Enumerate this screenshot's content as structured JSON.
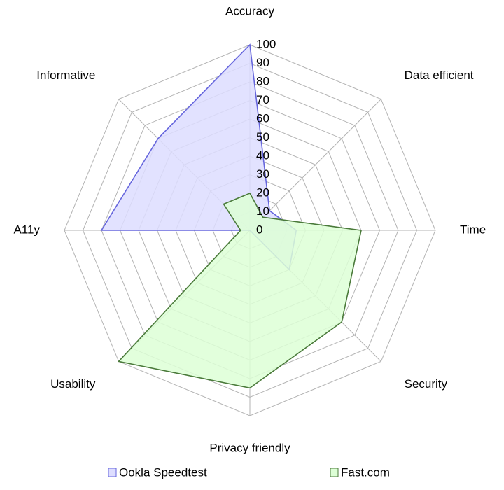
{
  "chart_data": {
    "type": "radar",
    "categories": [
      "Accuracy",
      "Data efficient",
      "Time",
      "Security",
      "Privacy friendly",
      "Usability",
      "A11y",
      "Informative"
    ],
    "series": [
      {
        "name": "Ookla Speedtest",
        "color": "#6666dd",
        "fill": "#ddddff",
        "values": [
          100,
          15,
          25,
          30,
          0,
          0,
          80,
          70
        ]
      },
      {
        "name": "Fast.com",
        "color": "#4a7a3a",
        "fill": "#ddffd6",
        "values": [
          20,
          10,
          60,
          70,
          85,
          100,
          5,
          20
        ]
      }
    ],
    "rlim": [
      0,
      100
    ],
    "rticks": [
      0,
      10,
      20,
      30,
      40,
      50,
      60,
      70,
      80,
      90,
      100
    ],
    "grid": true,
    "legend": "bottom"
  }
}
